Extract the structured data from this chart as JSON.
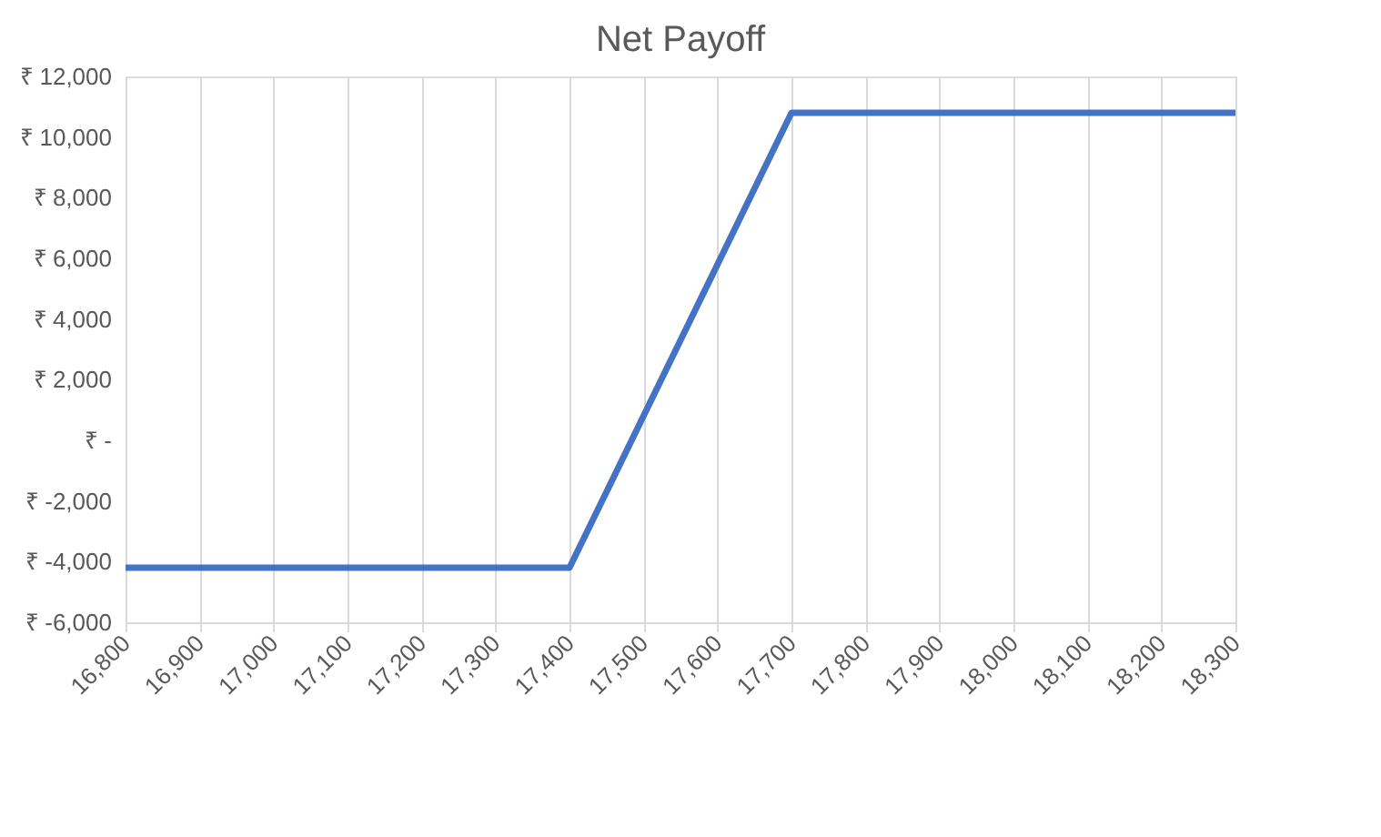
{
  "chart_data": {
    "type": "line",
    "title": "Net Payoff",
    "categories": [
      "16,800",
      "16,900",
      "17,000",
      "17,100",
      "17,200",
      "17,300",
      "17,400",
      "17,500",
      "17,600",
      "17,700",
      "17,800",
      "17,900",
      "18,000",
      "18,100",
      "18,200",
      "18,300"
    ],
    "series": [
      {
        "color": "#4472c4",
        "values": [
          -4200,
          -4200,
          -4200,
          -4200,
          -4200,
          -4200,
          -4200,
          800,
          5800,
          10800,
          10800,
          10800,
          10800,
          10800,
          10800,
          10800
        ]
      }
    ],
    "ylim": [
      -6000,
      12000
    ],
    "yticks": [
      {
        "value": -6000,
        "label": "₹ -6,000"
      },
      {
        "value": -4000,
        "label": "₹ -4,000"
      },
      {
        "value": -2000,
        "label": "₹ -2,000"
      },
      {
        "value": 0,
        "label": "₹ -"
      },
      {
        "value": 2000,
        "label": "₹ 2,000"
      },
      {
        "value": 4000,
        "label": "₹ 4,000"
      },
      {
        "value": 6000,
        "label": "₹ 6,000"
      },
      {
        "value": 8000,
        "label": "₹ 8,000"
      },
      {
        "value": 10000,
        "label": "₹ 10,000"
      },
      {
        "value": 12000,
        "label": "₹ 12,000"
      }
    ],
    "grid": "x",
    "legend": false,
    "marker": "none",
    "line_style": "solid"
  }
}
